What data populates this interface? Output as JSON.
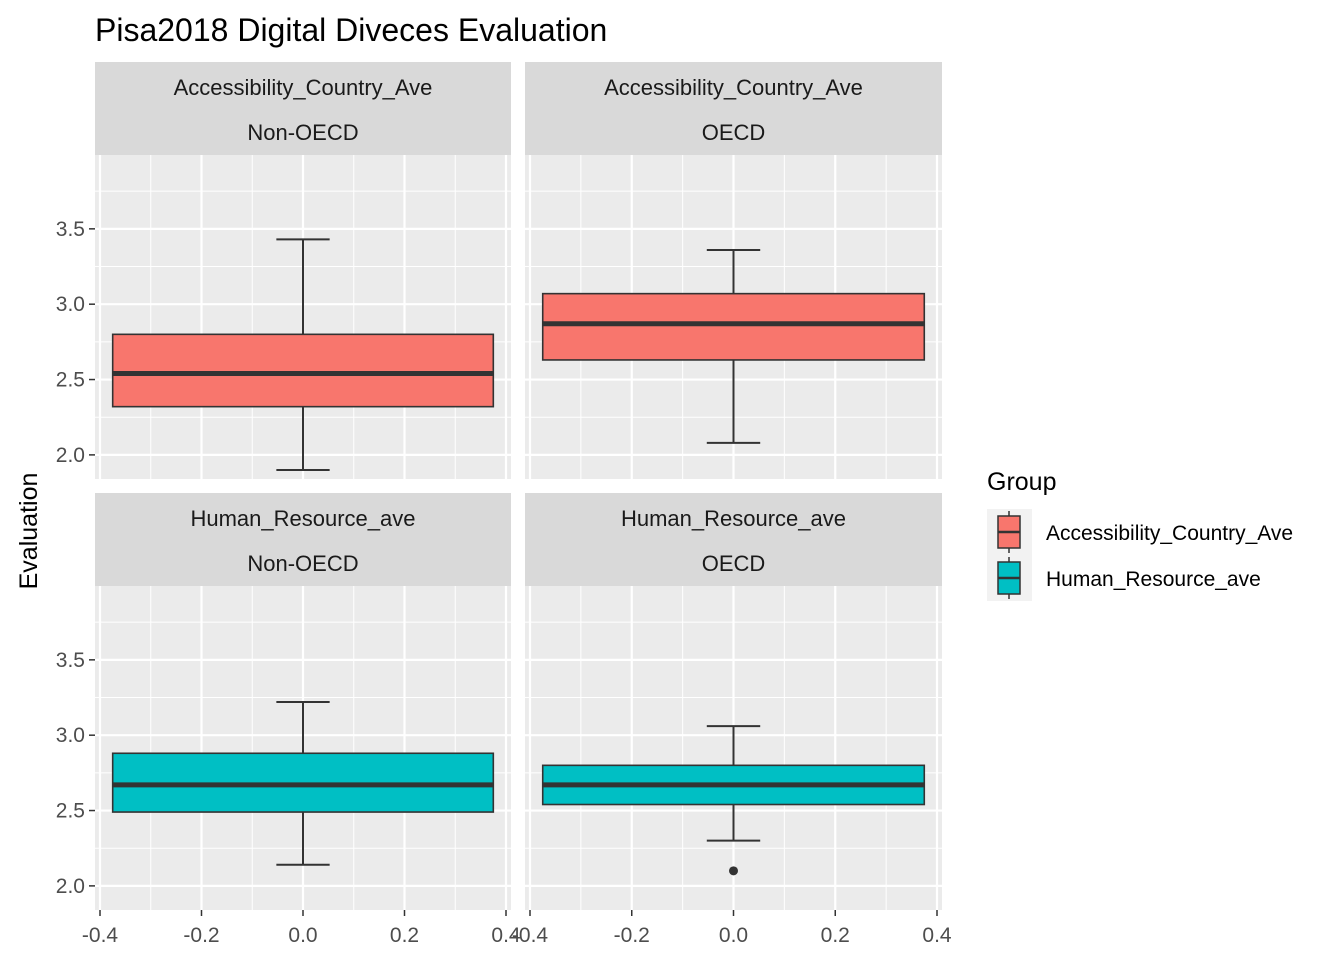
{
  "chart_data": {
    "type": "boxplot",
    "title": "Pisa2018 Digital Diveces Evaluation",
    "ylabel": "Evaluation",
    "xlabel": "",
    "xlim": [
      -0.4,
      0.4
    ],
    "ylim": [
      1.84,
      3.99
    ],
    "x_ticks": [
      -0.4,
      -0.2,
      0.0,
      0.2,
      0.4
    ],
    "x_tick_labels": [
      "-0.4",
      "-0.2",
      "0.0",
      "0.2",
      "0.4"
    ],
    "y_ticks": [
      2.0,
      2.5,
      3.0,
      3.5
    ],
    "y_tick_labels": [
      "2.0",
      "2.5",
      "3.0",
      "3.5"
    ],
    "grid": true,
    "legend": {
      "title": "Group",
      "placement": "right",
      "entries": [
        {
          "label": "Accessibility_Country_Ave",
          "color": "#F8766D"
        },
        {
          "label": "Human_Resource_ave",
          "color": "#00BFC4"
        }
      ]
    },
    "panels": [
      {
        "strip": [
          "Accessibility_Country_Ave",
          "Non-OECD"
        ],
        "color": "#F8766D",
        "whisker_low": 1.9,
        "q1": 2.32,
        "median": 2.54,
        "q3": 2.8,
        "whisker_high": 3.43,
        "outliers": []
      },
      {
        "strip": [
          "Accessibility_Country_Ave",
          "OECD"
        ],
        "color": "#F8766D",
        "whisker_low": 2.08,
        "q1": 2.63,
        "median": 2.87,
        "q3": 3.07,
        "whisker_high": 3.36,
        "outliers": []
      },
      {
        "strip": [
          "Human_Resource_ave",
          "Non-OECD"
        ],
        "color": "#00BFC4",
        "whisker_low": 2.14,
        "q1": 2.49,
        "median": 2.67,
        "q3": 2.88,
        "whisker_high": 3.22,
        "outliers": []
      },
      {
        "strip": [
          "Human_Resource_ave",
          "OECD"
        ],
        "color": "#00BFC4",
        "whisker_low": 2.3,
        "q1": 2.54,
        "median": 2.67,
        "q3": 2.8,
        "whisker_high": 3.06,
        "outliers": [
          2.1
        ]
      }
    ]
  }
}
